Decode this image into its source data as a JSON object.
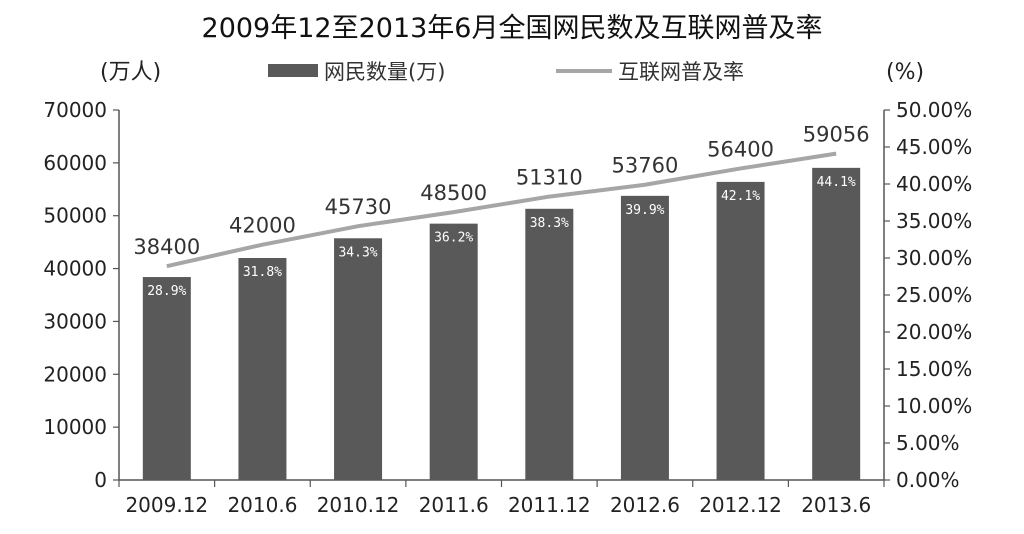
{
  "chart_data": {
    "type": "bar",
    "title": "2009年12至2013年6月全国网民数及互联网普及率",
    "categories": [
      "2009.12",
      "2010.6",
      "2010.12",
      "2011.6",
      "2011.12",
      "2012.6",
      "2012.12",
      "2013.6"
    ],
    "series": [
      {
        "name": "网民数量(万)",
        "type": "bar",
        "axis": "left",
        "color": "#595959",
        "values": [
          38400,
          42000,
          45730,
          48500,
          51310,
          53760,
          56400,
          59056
        ],
        "labels": [
          "38400",
          "42000",
          "45730",
          "48500",
          "51310",
          "53760",
          "56400",
          "59056"
        ]
      },
      {
        "name": "互联网普及率",
        "type": "line",
        "axis": "right",
        "color": "#a6a6a6",
        "values": [
          28.9,
          31.8,
          34.3,
          36.2,
          38.3,
          39.9,
          42.1,
          44.1
        ],
        "labels": [
          "28.9%",
          "31.8%",
          "34.3%",
          "36.2%",
          "38.3%",
          "39.9%",
          "42.1%",
          "44.1%"
        ]
      }
    ],
    "left_axis": {
      "unit_label": "(万人)",
      "ylim": [
        0,
        70000
      ],
      "ticks": [
        "0",
        "10000",
        "20000",
        "30000",
        "40000",
        "50000",
        "60000",
        "70000"
      ]
    },
    "right_axis": {
      "unit_label": "(%)",
      "ylim": [
        0,
        50
      ],
      "ticks": [
        "0.00%",
        "5.00%",
        "10.00%",
        "15.00%",
        "20.00%",
        "25.00%",
        "30.00%",
        "35.00%",
        "40.00%",
        "45.00%",
        "50.00%"
      ]
    },
    "legend": {
      "placement": "top-center"
    },
    "grid": false
  }
}
